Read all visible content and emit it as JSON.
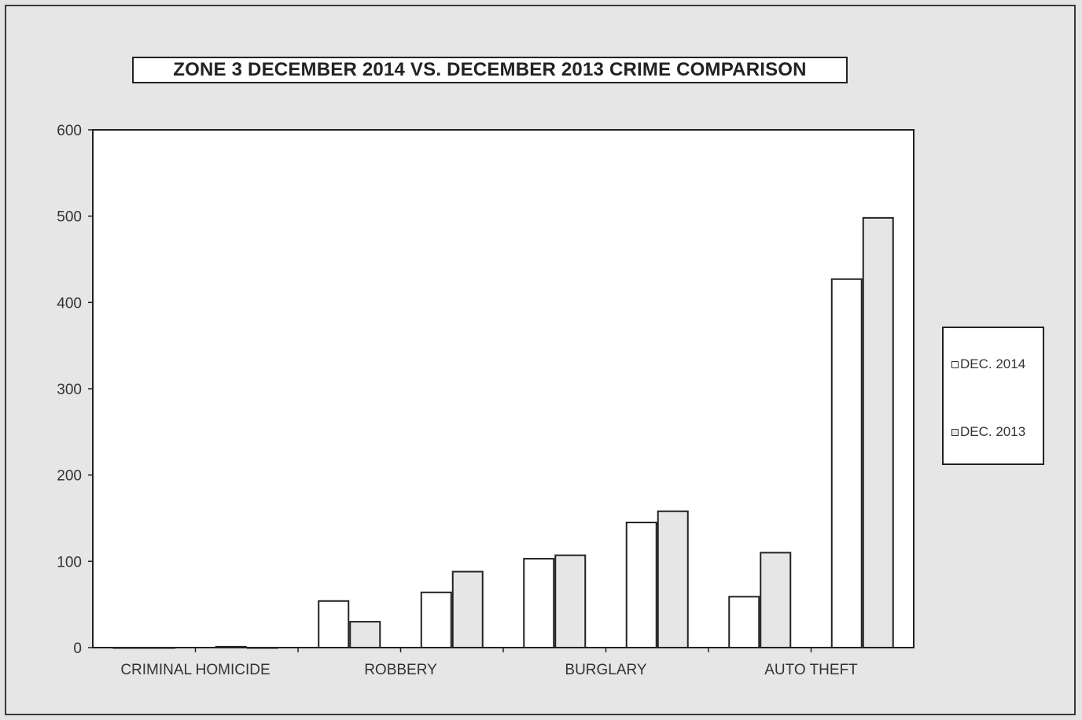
{
  "chart_data": {
    "type": "bar",
    "title": "ZONE 3  DECEMBER 2014 VS. DECEMBER 2013  CRIME COMPARISON",
    "xlabel": "",
    "ylabel": "",
    "ylim": [
      0,
      600
    ],
    "yticks": [
      "0",
      "100",
      "200",
      "300",
      "400",
      "500",
      "600"
    ],
    "categories": [
      "",
      "",
      "",
      "",
      "",
      "",
      "",
      ""
    ],
    "xtick_labels": [
      "CRIMINAL HOMICIDE",
      "ROBBERY",
      "BURGLARY",
      "AUTO THEFT"
    ],
    "series": [
      {
        "name": "DEC. 2014",
        "color": "#ffffff",
        "values": [
          0,
          1,
          54,
          64,
          103,
          145,
          59,
          427
        ]
      },
      {
        "name": "DEC. 2013",
        "color": "#e6e6e6",
        "values": [
          0,
          0,
          30,
          88,
          107,
          158,
          110,
          498
        ]
      }
    ],
    "grid": false,
    "legend_position": "right"
  }
}
